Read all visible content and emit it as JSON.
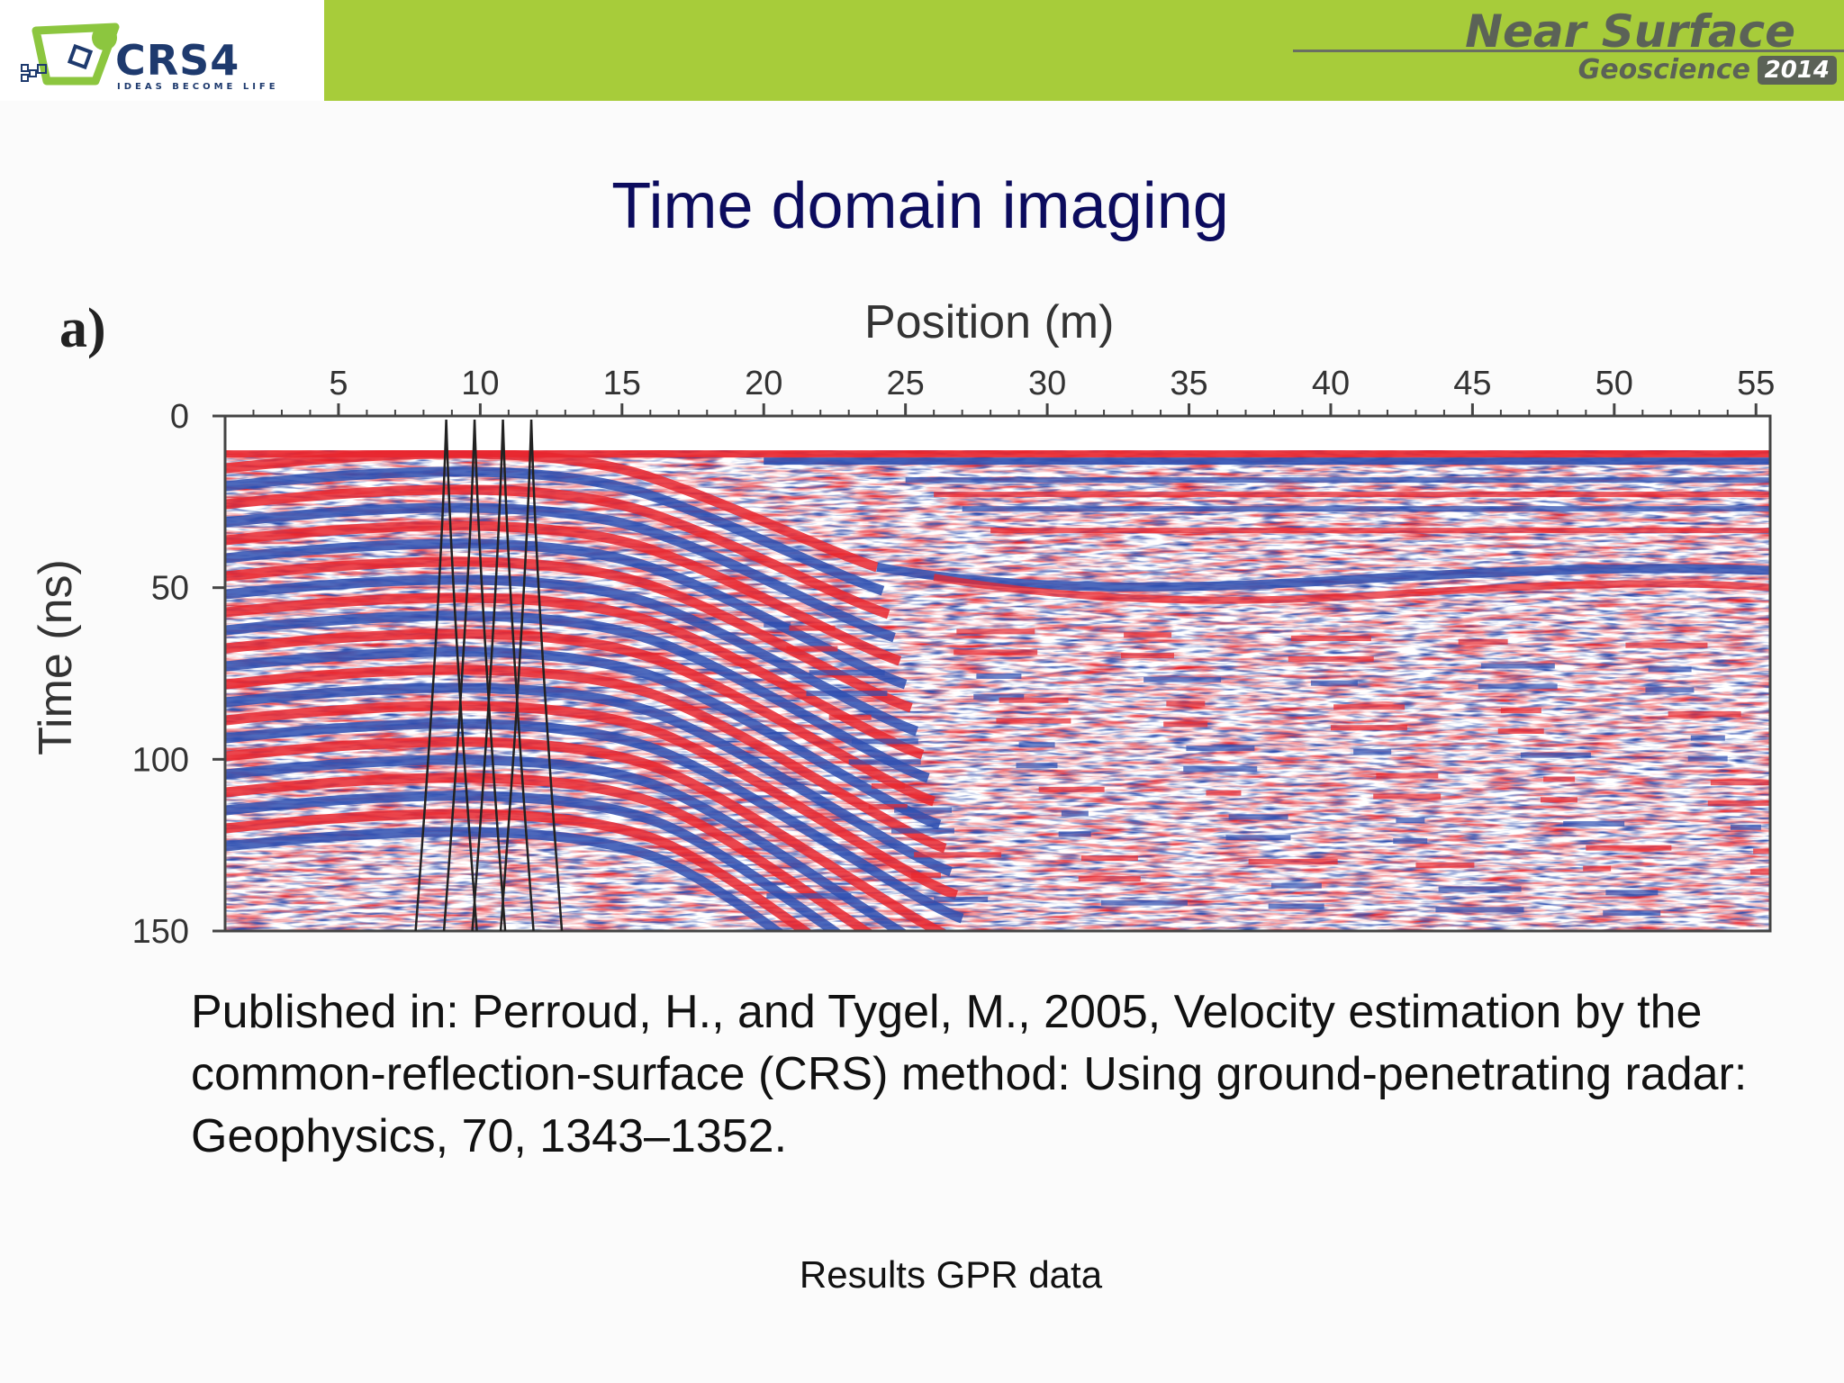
{
  "header": {
    "logo": {
      "name": "CRS4",
      "tagline": "IDEAS BECOME LIFE",
      "icon": "crs4-logo"
    },
    "conference": {
      "name": "Near Surface",
      "subtitle": "Geoscience",
      "year": "2014"
    },
    "colors": {
      "band": "#a7cc3a",
      "conference_text": "#5b6257"
    }
  },
  "slide": {
    "title": "Time domain imaging",
    "title_color": "#0c0c5e"
  },
  "figure": {
    "panel_label": "a)"
  },
  "chart_data": {
    "type": "heatmap",
    "title": "",
    "xlabel": "Position (m)",
    "ylabel": "Time (ns)",
    "x_ticks": [
      "5",
      "10",
      "15",
      "20",
      "25",
      "30",
      "35",
      "40",
      "45",
      "50",
      "55"
    ],
    "y_ticks": [
      "0",
      "50",
      "100",
      "150"
    ],
    "xlim": [
      1,
      55.5
    ],
    "ylim": [
      0,
      150
    ],
    "colormap": {
      "positive": "#e8262e",
      "negative": "#2e4fb0",
      "zero": "#ffffff"
    },
    "data_description_values": {
      "data_start_time_ns": 10,
      "velocity_analysis_curve_positions_m": [
        8.8,
        9.8,
        10.8,
        11.8
      ]
    }
  },
  "citation": "Published in: Perroud, H., and Tygel, M., 2005, Velocity estimation by the common-reflection-surface (CRS) method: Using ground-penetrating radar: Geophysics, 70, 1343–1352.",
  "caption": "Results GPR data"
}
